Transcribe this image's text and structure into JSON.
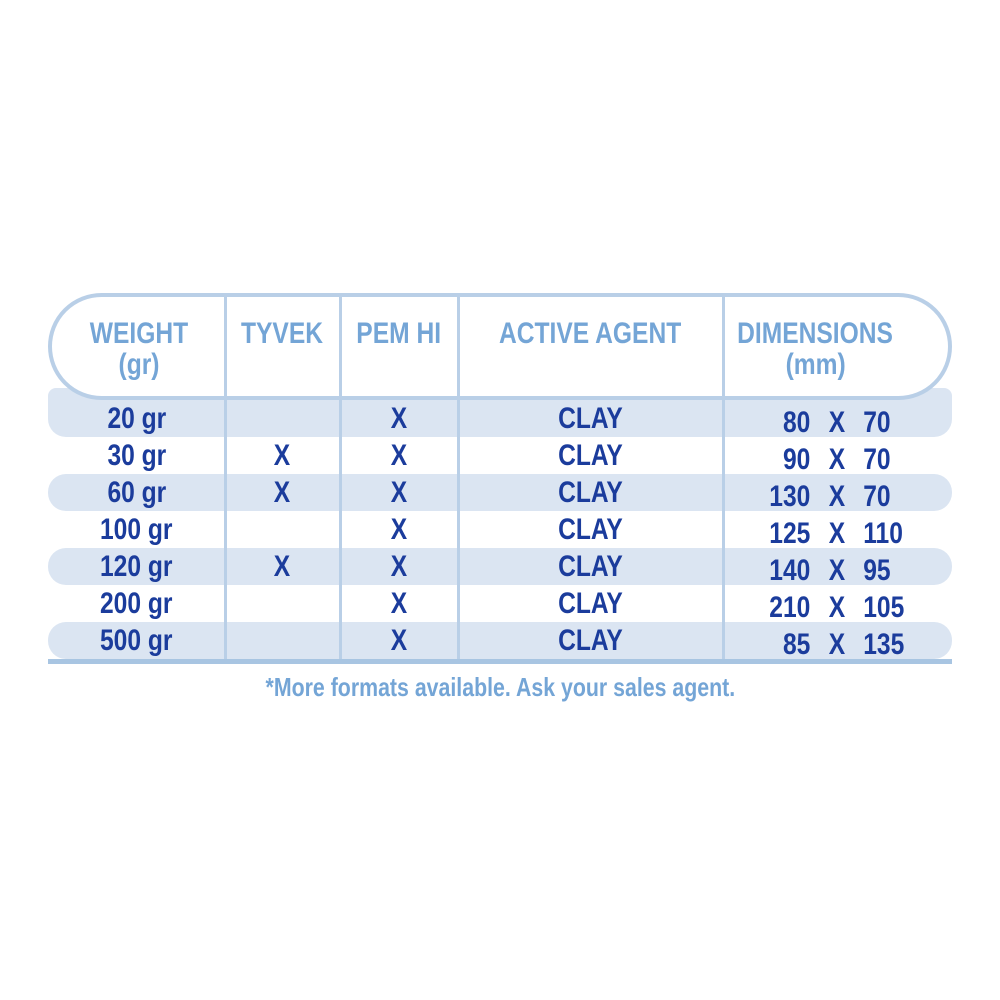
{
  "header": {
    "columns": [
      {
        "title": "WEIGHT",
        "subtitle": "(gr)"
      },
      {
        "title": "TYVEK",
        "subtitle": ""
      },
      {
        "title": "PEM HI",
        "subtitle": ""
      },
      {
        "title": "ACTIVE AGENT",
        "subtitle": ""
      },
      {
        "title": "DIMENSIONS",
        "subtitle": "(mm)"
      }
    ]
  },
  "rows": [
    {
      "weight": "20 gr",
      "tyvek": "",
      "pem_hi": "X",
      "active_agent": "CLAY",
      "dim_width": "80",
      "dim_sep": "X",
      "dim_height": "70"
    },
    {
      "weight": "30 gr",
      "tyvek": "X",
      "pem_hi": "X",
      "active_agent": "CLAY",
      "dim_width": "90",
      "dim_sep": "X",
      "dim_height": "70"
    },
    {
      "weight": "60 gr",
      "tyvek": "X",
      "pem_hi": "X",
      "active_agent": "CLAY",
      "dim_width": "130",
      "dim_sep": "X",
      "dim_height": "70"
    },
    {
      "weight": "100 gr",
      "tyvek": "",
      "pem_hi": "X",
      "active_agent": "CLAY",
      "dim_width": "125",
      "dim_sep": "X",
      "dim_height": "110"
    },
    {
      "weight": "120 gr",
      "tyvek": "X",
      "pem_hi": "X",
      "active_agent": "CLAY",
      "dim_width": "140",
      "dim_sep": "X",
      "dim_height": "95"
    },
    {
      "weight": "200 gr",
      "tyvek": "",
      "pem_hi": "X",
      "active_agent": "CLAY",
      "dim_width": "210",
      "dim_sep": "X",
      "dim_height": "105"
    },
    {
      "weight": "500 gr",
      "tyvek": "",
      "pem_hi": "X",
      "active_agent": "CLAY",
      "dim_width": "85",
      "dim_sep": "X",
      "dim_height": "135"
    }
  ],
  "footnote": "*More formats available. Ask your sales agent.",
  "colors": {
    "header_text": "#74a5d6",
    "row_text": "#1b3c9c",
    "row_band": "#dbe5f2",
    "pill_border": "#b9cfe7",
    "column_divider": "#b9cfe7",
    "bottom_line": "#a8c5e2",
    "footnote_text": "#74a5d6",
    "background": "#ffffff"
  }
}
